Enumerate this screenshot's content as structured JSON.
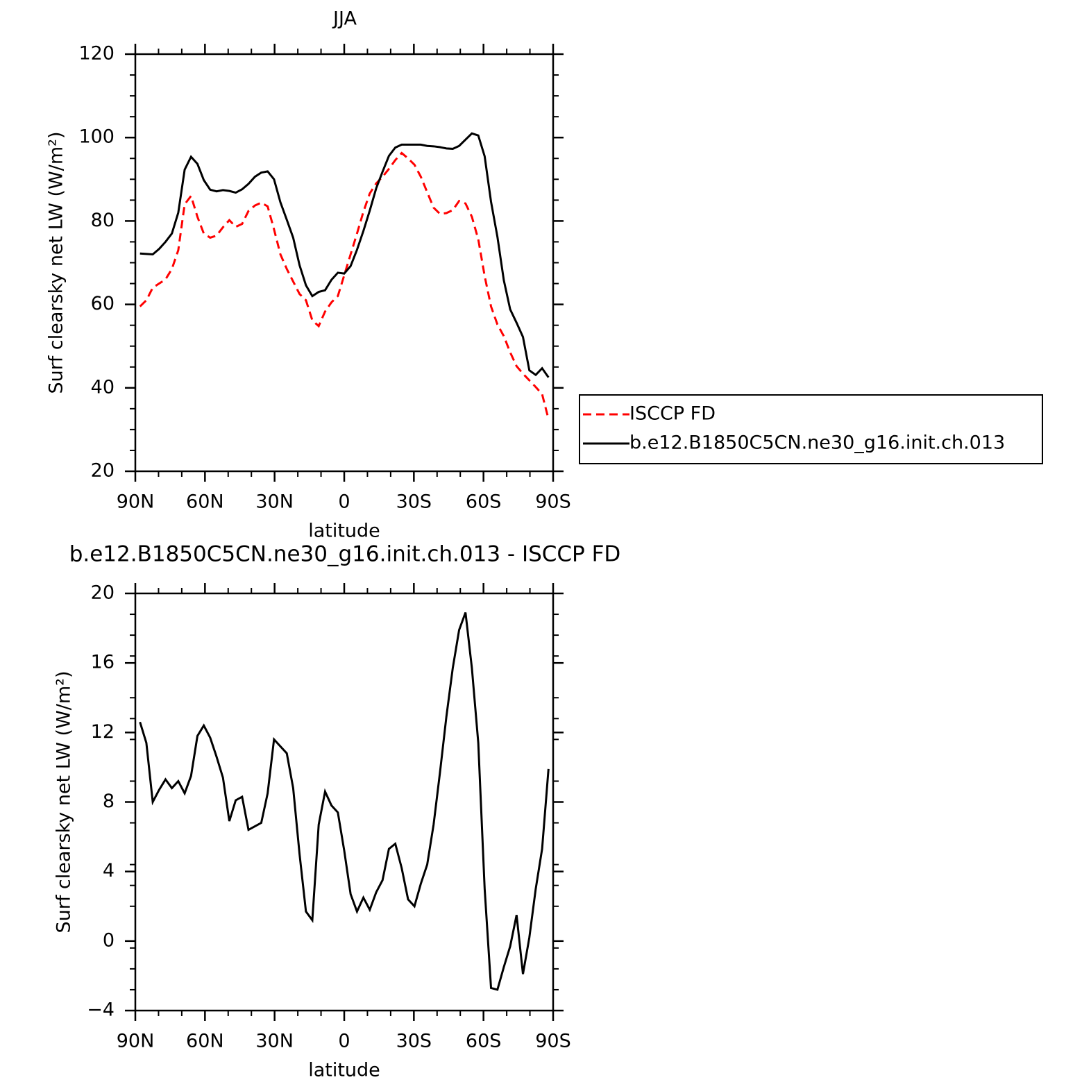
{
  "chart_data": [
    {
      "type": "line",
      "title": "JJA",
      "xlabel": "latitude",
      "ylabel": "Surf clearsky net LW (W/m²)",
      "x": [
        88,
        85.25,
        82.5,
        79.75,
        77,
        74.25,
        71.5,
        68.75,
        66,
        63.25,
        60.5,
        57.75,
        55,
        52.25,
        49.5,
        46.75,
        44,
        41.25,
        38.5,
        35.75,
        33,
        30.25,
        27.5,
        24.75,
        22,
        19.25,
        16.5,
        13.75,
        11,
        8.25,
        5.5,
        2.75,
        0,
        -2.75,
        -5.5,
        -8.25,
        -11,
        -13.75,
        -16.5,
        -19.25,
        -22,
        -24.75,
        -27.5,
        -30.25,
        -33,
        -35.75,
        -38.5,
        -41.25,
        -44,
        -46.75,
        -49.5,
        -52.25,
        -55,
        -57.75,
        -60.5,
        -63.25,
        -66,
        -68.75,
        -71.5,
        -74.25,
        -77,
        -79.75,
        -82.5,
        -85.25,
        -88
      ],
      "xlim": [
        90,
        -90
      ],
      "xticks": [
        {
          "value": 90,
          "label": "90N"
        },
        {
          "value": 60,
          "label": "60N"
        },
        {
          "value": 30,
          "label": "30N"
        },
        0,
        {
          "value": -30,
          "label": "30S"
        },
        {
          "value": -60,
          "label": "60S"
        },
        {
          "value": -90,
          "label": "90S"
        }
      ],
      "ylim": [
        20,
        120
      ],
      "yticks": [
        20,
        40,
        60,
        80,
        100,
        120
      ],
      "legend": "outside-right",
      "series": [
        {
          "name": "ISCCP FD",
          "color": "#ff0000",
          "dashed": true,
          "values": [
            59.5,
            61,
            64,
            65,
            66,
            68.5,
            73,
            84,
            86,
            81,
            77,
            76,
            76.5,
            78.5,
            80.2,
            78.6,
            79.3,
            82.4,
            83.7,
            84.4,
            83.5,
            78,
            72,
            68.5,
            65.5,
            62.5,
            61,
            56.2,
            54.8,
            58.3,
            60.5,
            62,
            67,
            72,
            77,
            82.2,
            86.6,
            89,
            90.6,
            92.5,
            94.6,
            96.3,
            95,
            93.5,
            90.6,
            86.9,
            83.2,
            81.7,
            81.9,
            82.6,
            84.8,
            84.2,
            81,
            75.6,
            66.8,
            59.5,
            55.2,
            52.4,
            48.5,
            45.2,
            43.4,
            41.8,
            40.2,
            38.5,
            32.5
          ]
        },
        {
          "name": "b.e12.B1850C5CN.ne30_g16.init.ch.013",
          "color": "#000000",
          "dashed": false,
          "values": [
            72.2,
            72.1,
            72,
            73.3,
            75,
            77,
            82,
            92.3,
            95.4,
            93.7,
            89.8,
            87.5,
            87.1,
            87.4,
            87.2,
            86.8,
            87.6,
            88.9,
            90.6,
            91.6,
            91.9,
            90,
            84.5,
            80.3,
            76,
            69.4,
            64.6,
            62,
            63,
            63.4,
            65.9,
            67.6,
            67.4,
            69.2,
            73.1,
            77.6,
            82.5,
            87.8,
            91.8,
            95.6,
            97.6,
            98.3,
            98.3,
            98.3,
            98.3,
            98,
            97.9,
            97.7,
            97.4,
            97.3,
            98,
            99.5,
            101,
            100.5,
            95.5,
            84.6,
            76.2,
            65.8,
            58.8,
            55.6,
            52.2,
            44.2,
            43.1,
            44.7,
            42.5
          ]
        }
      ]
    },
    {
      "type": "line",
      "title": "b.e12.B1850C5CN.ne30_g16.init.ch.013 - ISCCP FD",
      "xlabel": "latitude",
      "ylabel": "Surf clearsky net LW (W/m²)",
      "x": [
        88,
        85.25,
        82.5,
        79.75,
        77,
        74.25,
        71.5,
        68.75,
        66,
        63.25,
        60.5,
        57.75,
        55,
        52.25,
        49.5,
        46.75,
        44,
        41.25,
        38.5,
        35.75,
        33,
        30.25,
        27.5,
        24.75,
        22,
        19.25,
        16.5,
        13.75,
        11,
        8.25,
        5.5,
        2.75,
        0,
        -2.75,
        -5.5,
        -8.25,
        -11,
        -13.75,
        -16.5,
        -19.25,
        -22,
        -24.75,
        -27.5,
        -30.25,
        -33,
        -35.75,
        -38.5,
        -41.25,
        -44,
        -46.75,
        -49.5,
        -52.25,
        -55,
        -57.75,
        -60.5,
        -63.25,
        -66,
        -68.75,
        -71.5,
        -74.25,
        -77,
        -79.75,
        -82.5,
        -85.25,
        -88
      ],
      "xlim": [
        90,
        -90
      ],
      "xticks": [
        {
          "value": 90,
          "label": "90N"
        },
        {
          "value": 60,
          "label": "60N"
        },
        {
          "value": 30,
          "label": "30N"
        },
        0,
        {
          "value": -30,
          "label": "30S"
        },
        {
          "value": -60,
          "label": "60S"
        },
        {
          "value": -90,
          "label": "90S"
        }
      ],
      "ylim": [
        -4,
        20
      ],
      "yticks": [
        {
          "value": -4,
          "label": "−4"
        },
        0,
        4,
        8,
        12,
        16,
        20
      ],
      "series": [
        {
          "color": "#000000",
          "dashed": false,
          "values": [
            12.6,
            11.4,
            8.0,
            8.7,
            9.3,
            8.8,
            9.2,
            8.5,
            9.5,
            11.8,
            12.4,
            11.7,
            10.6,
            9.4,
            6.9,
            8.1,
            8.3,
            6.4,
            6.6,
            6.8,
            8.5,
            11.6,
            11.2,
            10.8,
            8.8,
            5.0,
            1.7,
            1.2,
            6.7,
            8.6,
            7.8,
            7.4,
            5.2,
            2.7,
            1.7,
            2.5,
            1.8,
            2.8,
            3.5,
            5.3,
            5.6,
            4.2,
            2.4,
            2.0,
            3.3,
            4.4,
            6.7,
            9.7,
            12.9,
            15.7,
            17.9,
            18.9,
            15.7,
            11.4,
            3.0,
            -2.7,
            -2.8,
            -1.5,
            -0.3,
            1.5,
            -1.9,
            0.2,
            3.0,
            5.3,
            9.9
          ]
        }
      ]
    }
  ]
}
